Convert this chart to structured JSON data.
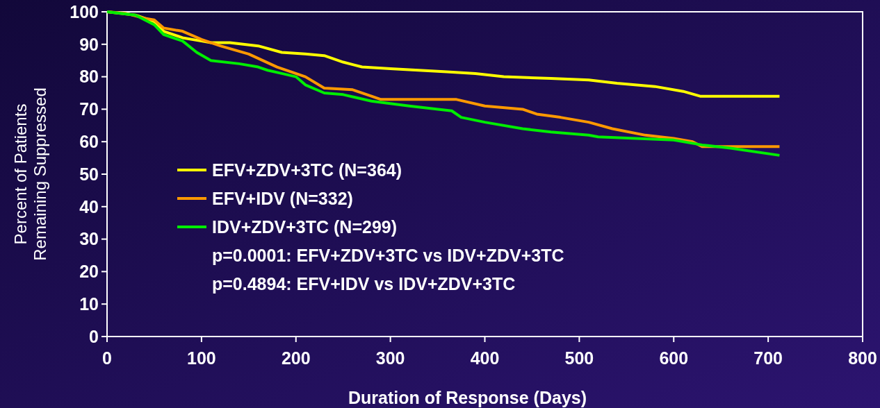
{
  "chart_data": {
    "type": "line",
    "xlabel": "Duration of Response (Days)",
    "ylabel": "Percent of Patients\nRemaining Suppressed",
    "xlim": [
      0,
      800
    ],
    "xticks": [
      0,
      100,
      200,
      300,
      400,
      500,
      600,
      700,
      800
    ],
    "ylim": [
      0,
      100
    ],
    "yticks": [
      0,
      10,
      20,
      30,
      40,
      50,
      60,
      70,
      80,
      90,
      100
    ],
    "grid": false,
    "legend": "left",
    "marker": "none",
    "line_style": "solid",
    "series": [
      {
        "name": "EFV+ZDV+3TC (N=364)",
        "color": "#ffff00",
        "x": [
          0,
          30,
          50,
          60,
          80,
          100,
          110,
          130,
          160,
          185,
          210,
          230,
          250,
          270,
          300,
          330,
          360,
          390,
          420,
          470,
          510,
          540,
          580,
          610,
          628,
          712
        ],
        "values": [
          100,
          99,
          97,
          94,
          92,
          91,
          90.5,
          90.5,
          89.5,
          87.5,
          87,
          86.5,
          84.5,
          83,
          82.5,
          82,
          81.5,
          81,
          80,
          79.5,
          79,
          78,
          77,
          75.5,
          74,
          74
        ]
      },
      {
        "name": "EFV+IDV (N=332)",
        "color": "#ff9900",
        "x": [
          0,
          20,
          40,
          50,
          60,
          80,
          100,
          120,
          150,
          180,
          210,
          230,
          260,
          280,
          290,
          370,
          400,
          440,
          455,
          480,
          510,
          535,
          570,
          600,
          620,
          630,
          712
        ],
        "values": [
          100,
          99.5,
          98,
          97.5,
          95,
          94,
          91.5,
          89.5,
          87,
          83,
          80,
          76.5,
          76,
          74,
          73,
          73,
          71,
          70,
          68.5,
          67.5,
          66,
          64,
          62,
          61,
          60,
          58.5,
          58.5
        ]
      },
      {
        "name": "IDV+ZDV+3TC (N=299)",
        "color": "#00ee00",
        "x": [
          0,
          30,
          50,
          60,
          80,
          95,
          110,
          140,
          160,
          170,
          185,
          200,
          210,
          230,
          250,
          280,
          320,
          365,
          375,
          400,
          440,
          470,
          510,
          520,
          600,
          630,
          660,
          712
        ],
        "values": [
          100,
          99,
          96,
          93,
          91,
          87.5,
          85,
          84,
          83,
          82,
          81,
          80,
          77.5,
          75,
          74.5,
          72.5,
          71,
          69.5,
          67.5,
          66,
          64,
          63,
          62,
          61.5,
          60.5,
          59,
          58,
          55.8
        ]
      }
    ],
    "annotations": [
      "p=0.0001: EFV+ZDV+3TC vs IDV+ZDV+3TC",
      "p=0.4894: EFV+IDV vs IDV+ZDV+3TC"
    ]
  }
}
